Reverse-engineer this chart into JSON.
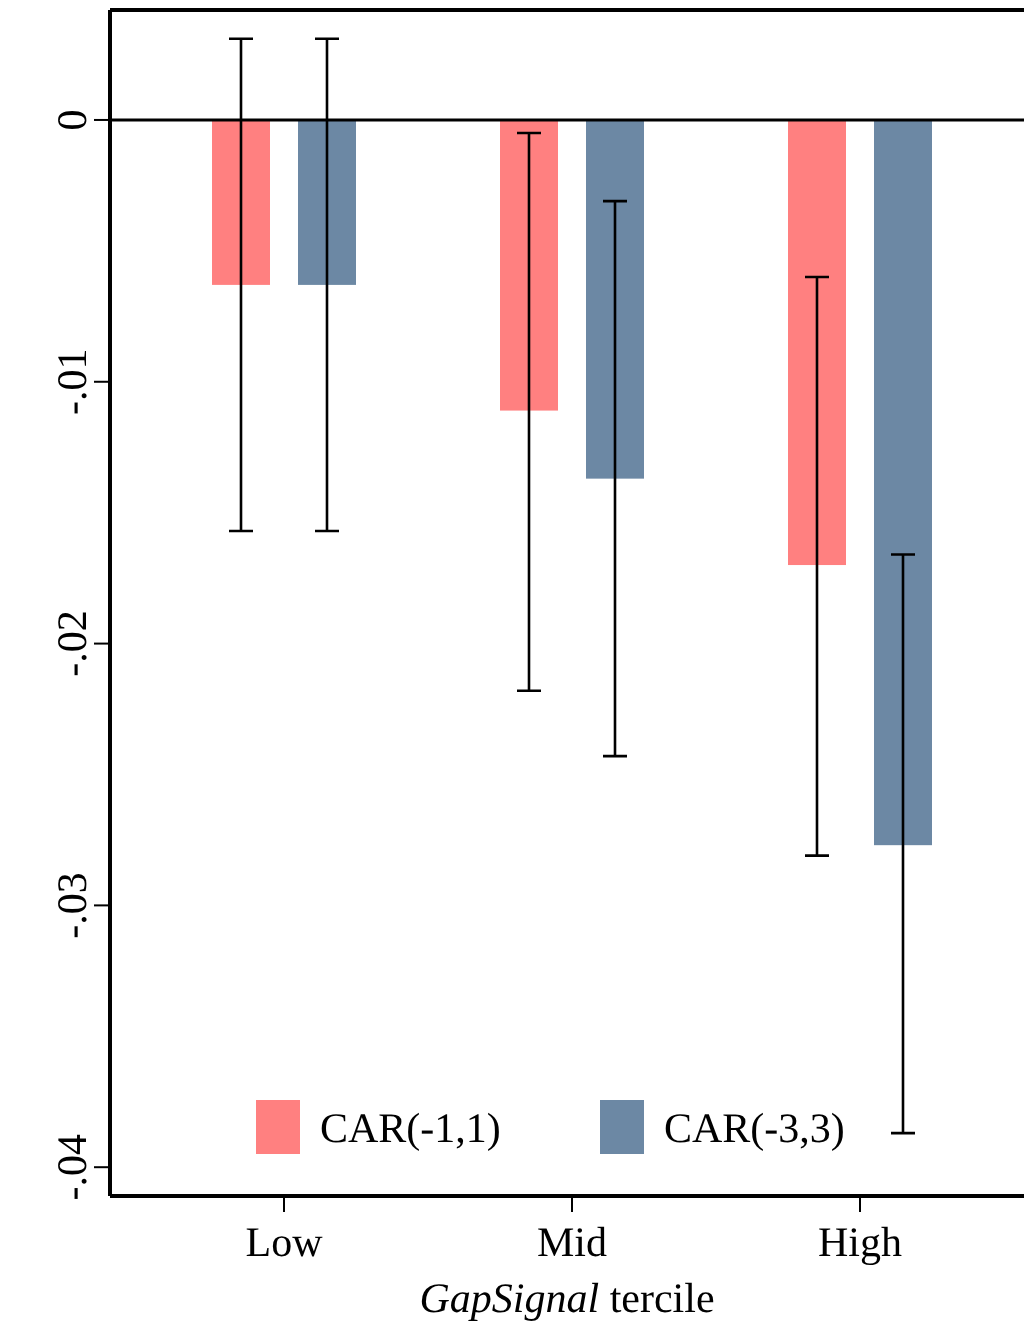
{
  "chart_data": {
    "type": "bar",
    "xlabel": "GapSignal tercile",
    "categories": [
      "Low",
      "Mid",
      "High"
    ],
    "series": [
      {
        "name": "CAR(-1,1)",
        "color": "#ff8080",
        "values": [
          -0.0063,
          -0.0111,
          -0.017
        ],
        "errors": [
          [
            -0.0157,
            0.0031
          ],
          [
            -0.0218,
            -0.0005
          ],
          [
            -0.0281,
            -0.006
          ]
        ]
      },
      {
        "name": "CAR(-3,3)",
        "color": "#6c88a4",
        "values": [
          -0.0063,
          -0.0137,
          -0.0277
        ],
        "errors": [
          [
            -0.0157,
            0.0031
          ],
          [
            -0.0243,
            -0.0031
          ],
          [
            -0.0387,
            -0.0166
          ]
        ]
      }
    ],
    "ylim": [
      -0.0411,
      0.0042
    ],
    "yticks": [
      {
        "value": 0,
        "label": "0"
      },
      {
        "value": -0.01,
        "label": "-.01"
      },
      {
        "value": -0.02,
        "label": "-.02"
      },
      {
        "value": -0.03,
        "label": "-.03"
      },
      {
        "value": -0.04,
        "label": "-.04"
      }
    ],
    "ref_lines": [
      {
        "axis": "y",
        "value": 0,
        "color": "#000000"
      }
    ],
    "grid": false,
    "legend": "bottom"
  }
}
